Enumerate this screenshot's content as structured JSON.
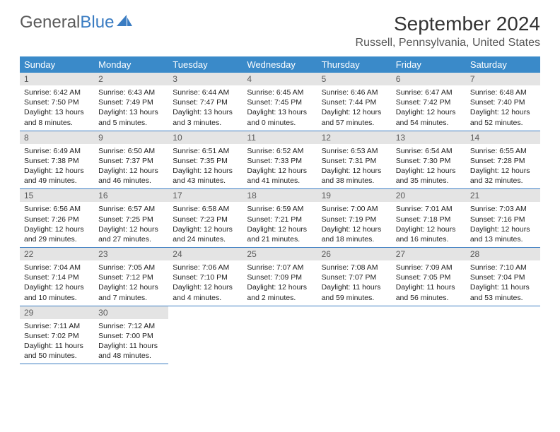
{
  "brand": {
    "part1": "General",
    "part2": "Blue",
    "text_color1": "#5a5a5a",
    "text_color2": "#3a7cc2",
    "icon_color": "#3a7cc2"
  },
  "title": "September 2024",
  "location": "Russell, Pennsylvania, United States",
  "header_bg": "#3a8ac9",
  "header_fg": "#ffffff",
  "daynum_bg": "#e4e4e4",
  "daynum_fg": "#5a5a5a",
  "body_color": "#222222",
  "rule_color": "#3a7cc2",
  "page_bg": "#ffffff",
  "font_family": "Arial, Helvetica, sans-serif",
  "title_fontsize": 28,
  "location_fontsize": 16,
  "weekday_fontsize": 13,
  "daynum_fontsize": 12,
  "body_fontsize": 10.5,
  "weekdays": [
    "Sunday",
    "Monday",
    "Tuesday",
    "Wednesday",
    "Thursday",
    "Friday",
    "Saturday"
  ],
  "weeks": [
    [
      {
        "n": "1",
        "sunrise": "Sunrise: 6:42 AM",
        "sunset": "Sunset: 7:50 PM",
        "daylight": "Daylight: 13 hours and 8 minutes."
      },
      {
        "n": "2",
        "sunrise": "Sunrise: 6:43 AM",
        "sunset": "Sunset: 7:49 PM",
        "daylight": "Daylight: 13 hours and 5 minutes."
      },
      {
        "n": "3",
        "sunrise": "Sunrise: 6:44 AM",
        "sunset": "Sunset: 7:47 PM",
        "daylight": "Daylight: 13 hours and 3 minutes."
      },
      {
        "n": "4",
        "sunrise": "Sunrise: 6:45 AM",
        "sunset": "Sunset: 7:45 PM",
        "daylight": "Daylight: 13 hours and 0 minutes."
      },
      {
        "n": "5",
        "sunrise": "Sunrise: 6:46 AM",
        "sunset": "Sunset: 7:44 PM",
        "daylight": "Daylight: 12 hours and 57 minutes."
      },
      {
        "n": "6",
        "sunrise": "Sunrise: 6:47 AM",
        "sunset": "Sunset: 7:42 PM",
        "daylight": "Daylight: 12 hours and 54 minutes."
      },
      {
        "n": "7",
        "sunrise": "Sunrise: 6:48 AM",
        "sunset": "Sunset: 7:40 PM",
        "daylight": "Daylight: 12 hours and 52 minutes."
      }
    ],
    [
      {
        "n": "8",
        "sunrise": "Sunrise: 6:49 AM",
        "sunset": "Sunset: 7:38 PM",
        "daylight": "Daylight: 12 hours and 49 minutes."
      },
      {
        "n": "9",
        "sunrise": "Sunrise: 6:50 AM",
        "sunset": "Sunset: 7:37 PM",
        "daylight": "Daylight: 12 hours and 46 minutes."
      },
      {
        "n": "10",
        "sunrise": "Sunrise: 6:51 AM",
        "sunset": "Sunset: 7:35 PM",
        "daylight": "Daylight: 12 hours and 43 minutes."
      },
      {
        "n": "11",
        "sunrise": "Sunrise: 6:52 AM",
        "sunset": "Sunset: 7:33 PM",
        "daylight": "Daylight: 12 hours and 41 minutes."
      },
      {
        "n": "12",
        "sunrise": "Sunrise: 6:53 AM",
        "sunset": "Sunset: 7:31 PM",
        "daylight": "Daylight: 12 hours and 38 minutes."
      },
      {
        "n": "13",
        "sunrise": "Sunrise: 6:54 AM",
        "sunset": "Sunset: 7:30 PM",
        "daylight": "Daylight: 12 hours and 35 minutes."
      },
      {
        "n": "14",
        "sunrise": "Sunrise: 6:55 AM",
        "sunset": "Sunset: 7:28 PM",
        "daylight": "Daylight: 12 hours and 32 minutes."
      }
    ],
    [
      {
        "n": "15",
        "sunrise": "Sunrise: 6:56 AM",
        "sunset": "Sunset: 7:26 PM",
        "daylight": "Daylight: 12 hours and 29 minutes."
      },
      {
        "n": "16",
        "sunrise": "Sunrise: 6:57 AM",
        "sunset": "Sunset: 7:25 PM",
        "daylight": "Daylight: 12 hours and 27 minutes."
      },
      {
        "n": "17",
        "sunrise": "Sunrise: 6:58 AM",
        "sunset": "Sunset: 7:23 PM",
        "daylight": "Daylight: 12 hours and 24 minutes."
      },
      {
        "n": "18",
        "sunrise": "Sunrise: 6:59 AM",
        "sunset": "Sunset: 7:21 PM",
        "daylight": "Daylight: 12 hours and 21 minutes."
      },
      {
        "n": "19",
        "sunrise": "Sunrise: 7:00 AM",
        "sunset": "Sunset: 7:19 PM",
        "daylight": "Daylight: 12 hours and 18 minutes."
      },
      {
        "n": "20",
        "sunrise": "Sunrise: 7:01 AM",
        "sunset": "Sunset: 7:18 PM",
        "daylight": "Daylight: 12 hours and 16 minutes."
      },
      {
        "n": "21",
        "sunrise": "Sunrise: 7:03 AM",
        "sunset": "Sunset: 7:16 PM",
        "daylight": "Daylight: 12 hours and 13 minutes."
      }
    ],
    [
      {
        "n": "22",
        "sunrise": "Sunrise: 7:04 AM",
        "sunset": "Sunset: 7:14 PM",
        "daylight": "Daylight: 12 hours and 10 minutes."
      },
      {
        "n": "23",
        "sunrise": "Sunrise: 7:05 AM",
        "sunset": "Sunset: 7:12 PM",
        "daylight": "Daylight: 12 hours and 7 minutes."
      },
      {
        "n": "24",
        "sunrise": "Sunrise: 7:06 AM",
        "sunset": "Sunset: 7:10 PM",
        "daylight": "Daylight: 12 hours and 4 minutes."
      },
      {
        "n": "25",
        "sunrise": "Sunrise: 7:07 AM",
        "sunset": "Sunset: 7:09 PM",
        "daylight": "Daylight: 12 hours and 2 minutes."
      },
      {
        "n": "26",
        "sunrise": "Sunrise: 7:08 AM",
        "sunset": "Sunset: 7:07 PM",
        "daylight": "Daylight: 11 hours and 59 minutes."
      },
      {
        "n": "27",
        "sunrise": "Sunrise: 7:09 AM",
        "sunset": "Sunset: 7:05 PM",
        "daylight": "Daylight: 11 hours and 56 minutes."
      },
      {
        "n": "28",
        "sunrise": "Sunrise: 7:10 AM",
        "sunset": "Sunset: 7:04 PM",
        "daylight": "Daylight: 11 hours and 53 minutes."
      }
    ],
    [
      {
        "n": "29",
        "sunrise": "Sunrise: 7:11 AM",
        "sunset": "Sunset: 7:02 PM",
        "daylight": "Daylight: 11 hours and 50 minutes."
      },
      {
        "n": "30",
        "sunrise": "Sunrise: 7:12 AM",
        "sunset": "Sunset: 7:00 PM",
        "daylight": "Daylight: 11 hours and 48 minutes."
      },
      null,
      null,
      null,
      null,
      null
    ]
  ]
}
